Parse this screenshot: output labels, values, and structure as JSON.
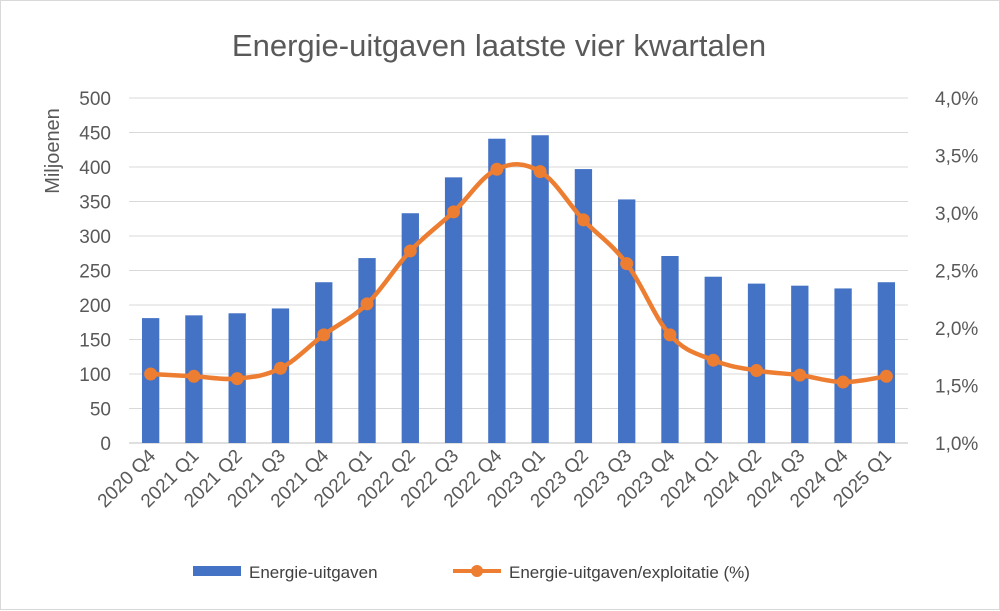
{
  "chart_data": {
    "type": "bar",
    "title": "Energie-uitgaven laatste vier kwartalen",
    "ylabel": "Miljoenen",
    "y2label": "",
    "categories": [
      "2020 Q4",
      "2021 Q1",
      "2021 Q2",
      "2021 Q3",
      "2021 Q4",
      "2022 Q1",
      "2022 Q2",
      "2022 Q3",
      "2022 Q4",
      "2023 Q1",
      "2023 Q2",
      "2023 Q3",
      "2023 Q4",
      "2024 Q1",
      "2024 Q2",
      "2024 Q3",
      "2024 Q4",
      "2025 Q1"
    ],
    "ylim": [
      0,
      500
    ],
    "y2lim": [
      1.0,
      4.0
    ],
    "y_ticks": [
      "0",
      "50",
      "100",
      "150",
      "200",
      "250",
      "300",
      "350",
      "400",
      "450",
      "500"
    ],
    "y2_ticks": [
      "1,0%",
      "1,5%",
      "2,0%",
      "2,5%",
      "3,0%",
      "3,5%",
      "4,0%"
    ],
    "grid": true,
    "legend_position": "bottom",
    "series": [
      {
        "name": "Energie-uitgaven",
        "type": "bar",
        "axis": "left",
        "color": "#4472c4",
        "values": [
          181,
          185,
          188,
          195,
          233,
          268,
          333,
          385,
          441,
          446,
          397,
          353,
          271,
          241,
          231,
          228,
          224,
          233
        ]
      },
      {
        "name": "Energie-uitgaven/exploitatie (%)",
        "type": "line",
        "axis": "right",
        "color": "#ed7d31",
        "values": [
          1.6,
          1.58,
          1.56,
          1.65,
          1.94,
          2.21,
          2.67,
          3.01,
          3.38,
          3.36,
          2.94,
          2.56,
          1.94,
          1.72,
          1.63,
          1.59,
          1.53,
          1.58
        ]
      }
    ]
  }
}
